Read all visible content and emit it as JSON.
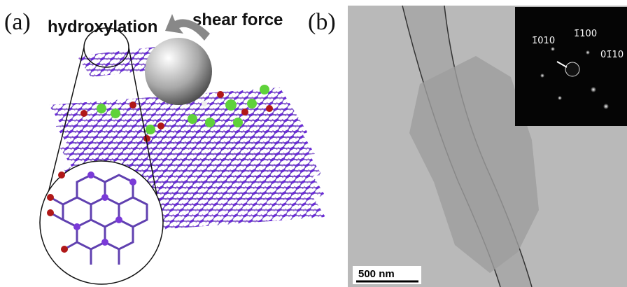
{
  "panel_a": {
    "label": "(a)",
    "annotations": [
      "hydroxylation",
      "shear force"
    ]
  },
  "panel_b": {
    "label": "(b)",
    "scale_bar": "500 nm",
    "diffraction_indices": [
      "1̄010",
      "1̄100",
      "01̄10"
    ]
  }
}
